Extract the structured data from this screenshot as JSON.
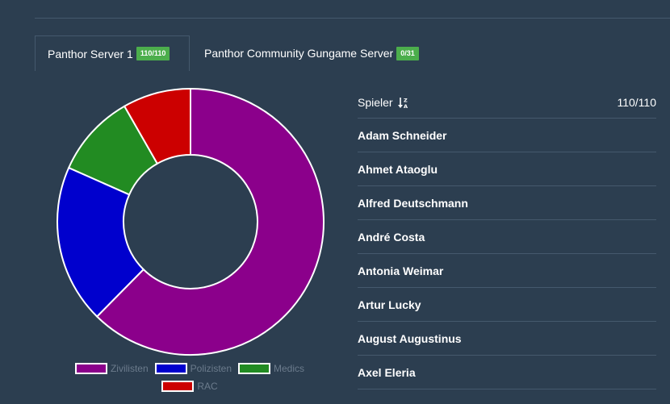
{
  "tabs": [
    {
      "label": "Panthor Server 1",
      "badge": "110/110",
      "active": true
    },
    {
      "label": "Panthor Community Gungame Server",
      "badge": "0/31",
      "active": false
    }
  ],
  "chart_data": {
    "type": "pie",
    "style": "donut",
    "categories": [
      "Zivilisten",
      "Polizisten",
      "Medics",
      "RAC"
    ],
    "values": [
      68,
      21,
      11,
      9
    ],
    "colors": [
      "#8b008b",
      "#0000cd",
      "#228b22",
      "#cc0000"
    ],
    "legend_position": "bottom"
  },
  "players": {
    "header_label": "Spieler",
    "count": "110/110",
    "sort_icon": "sort-alpha-desc-icon",
    "items": [
      "Adam Schneider",
      "Ahmet Ataoglu",
      "Alfred Deutschmann",
      "André Costa",
      "Antonia Weimar",
      "Artur Lucky",
      "August Augustinus",
      "Axel Eleria"
    ]
  }
}
